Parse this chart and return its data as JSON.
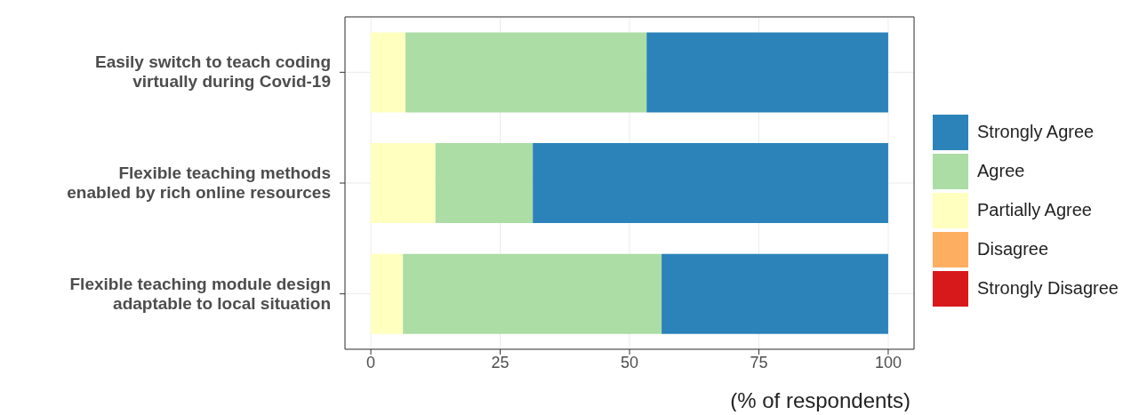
{
  "chart_data": {
    "type": "bar",
    "orientation": "horizontal",
    "stacked": true,
    "xlabel": "(% of respondents)",
    "categories": [
      "Easily switch to teach coding\nvirtually during Covid-19",
      "Flexible teaching methods\nenabled by rich online resources",
      "Flexible teaching module design\nadaptable to local situation"
    ],
    "series": [
      {
        "name": "Strongly Disagree",
        "color": "#d7191c",
        "values": [
          0,
          0,
          0
        ]
      },
      {
        "name": "Disagree",
        "color": "#fdae61",
        "values": [
          0,
          0,
          0
        ]
      },
      {
        "name": "Partially Agree",
        "color": "#ffffbf",
        "values": [
          6.7,
          12.5,
          6.2
        ]
      },
      {
        "name": "Agree",
        "color": "#abdda4",
        "values": [
          46.6,
          18.8,
          50
        ]
      },
      {
        "name": "Strongly Agree",
        "color": "#2b83ba",
        "values": [
          46.7,
          68.7,
          43.8
        ]
      }
    ],
    "xlim": [
      -5,
      105
    ],
    "xticks": [
      0,
      25,
      50,
      75,
      100
    ],
    "grid": true,
    "legend": "right"
  }
}
